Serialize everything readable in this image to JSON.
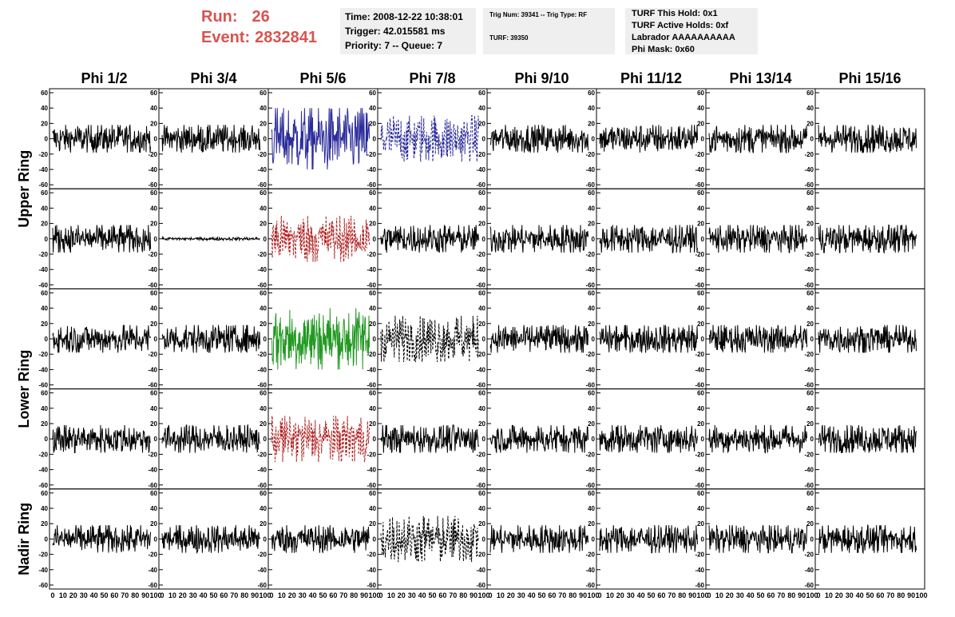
{
  "header": {
    "run_label": "Run:",
    "run_value": "26",
    "event_label": "Event:",
    "event_value": "2832841",
    "time_line": "Time: 2008-12-22 10:38:01",
    "trigger_line": "Trigger: 42.015581 ms",
    "priority_line": "Priority: 7 -- Queue: 7",
    "trig_line": "Trig Num: 39341 -- Trig Type: RF",
    "turf_line": "TURF: 39350",
    "turf_hold_line": "TURF This Hold: 0x1",
    "turf_active_line": "TURF Active Holds: 0xf",
    "labrador_line": "Labrador AAAAAAAAAA",
    "phi_mask_line": "Phi Mask: 0x60",
    "accent_color": "#d9534f",
    "pane_color": "#efefef"
  },
  "chart_data": {
    "type": "line",
    "columns": [
      "Phi 1/2",
      "Phi 3/4",
      "Phi 5/6",
      "Phi 7/8",
      "Phi 9/10",
      "Phi 11/12",
      "Phi 13/14",
      "Phi 15/16"
    ],
    "row_groups": [
      {
        "label": "Upper Ring",
        "rows": [
          0,
          1
        ]
      },
      {
        "label": "Lower Ring",
        "rows": [
          2,
          3
        ]
      },
      {
        "label": "Nadir Ring",
        "rows": [
          4
        ]
      }
    ],
    "ylim": [
      -60,
      60
    ],
    "xlim": [
      0,
      100
    ],
    "y_ticks": [
      "60",
      "40",
      "20",
      "0",
      "-20",
      "-40",
      "-60"
    ],
    "x_ticks": [
      "0",
      "10",
      "20",
      "30",
      "40",
      "50",
      "60",
      "70",
      "80",
      "90",
      "100"
    ],
    "trace_samples": 220,
    "trace_x_max": 95,
    "noise_amplitude": 18,
    "highlighted": [
      {
        "row": 0,
        "col": 2,
        "color": "#2b2b9a",
        "dashed": false,
        "amplitude": 40
      },
      {
        "row": 0,
        "col": 3,
        "color": "#2b2b9a",
        "dashed": true,
        "amplitude": 30
      },
      {
        "row": 1,
        "col": 1,
        "color": "#000000",
        "dashed": false,
        "amplitude": 2
      },
      {
        "row": 1,
        "col": 2,
        "color": "#b22222",
        "dashed": true,
        "amplitude": 30
      },
      {
        "row": 2,
        "col": 2,
        "color": "#229922",
        "dashed": false,
        "amplitude": 40
      },
      {
        "row": 2,
        "col": 3,
        "color": "#000000",
        "dashed": true,
        "amplitude": 30
      },
      {
        "row": 3,
        "col": 2,
        "color": "#b22222",
        "dashed": true,
        "amplitude": 30
      },
      {
        "row": 4,
        "col": 3,
        "color": "#000000",
        "dashed": true,
        "amplitude": 30
      }
    ]
  }
}
